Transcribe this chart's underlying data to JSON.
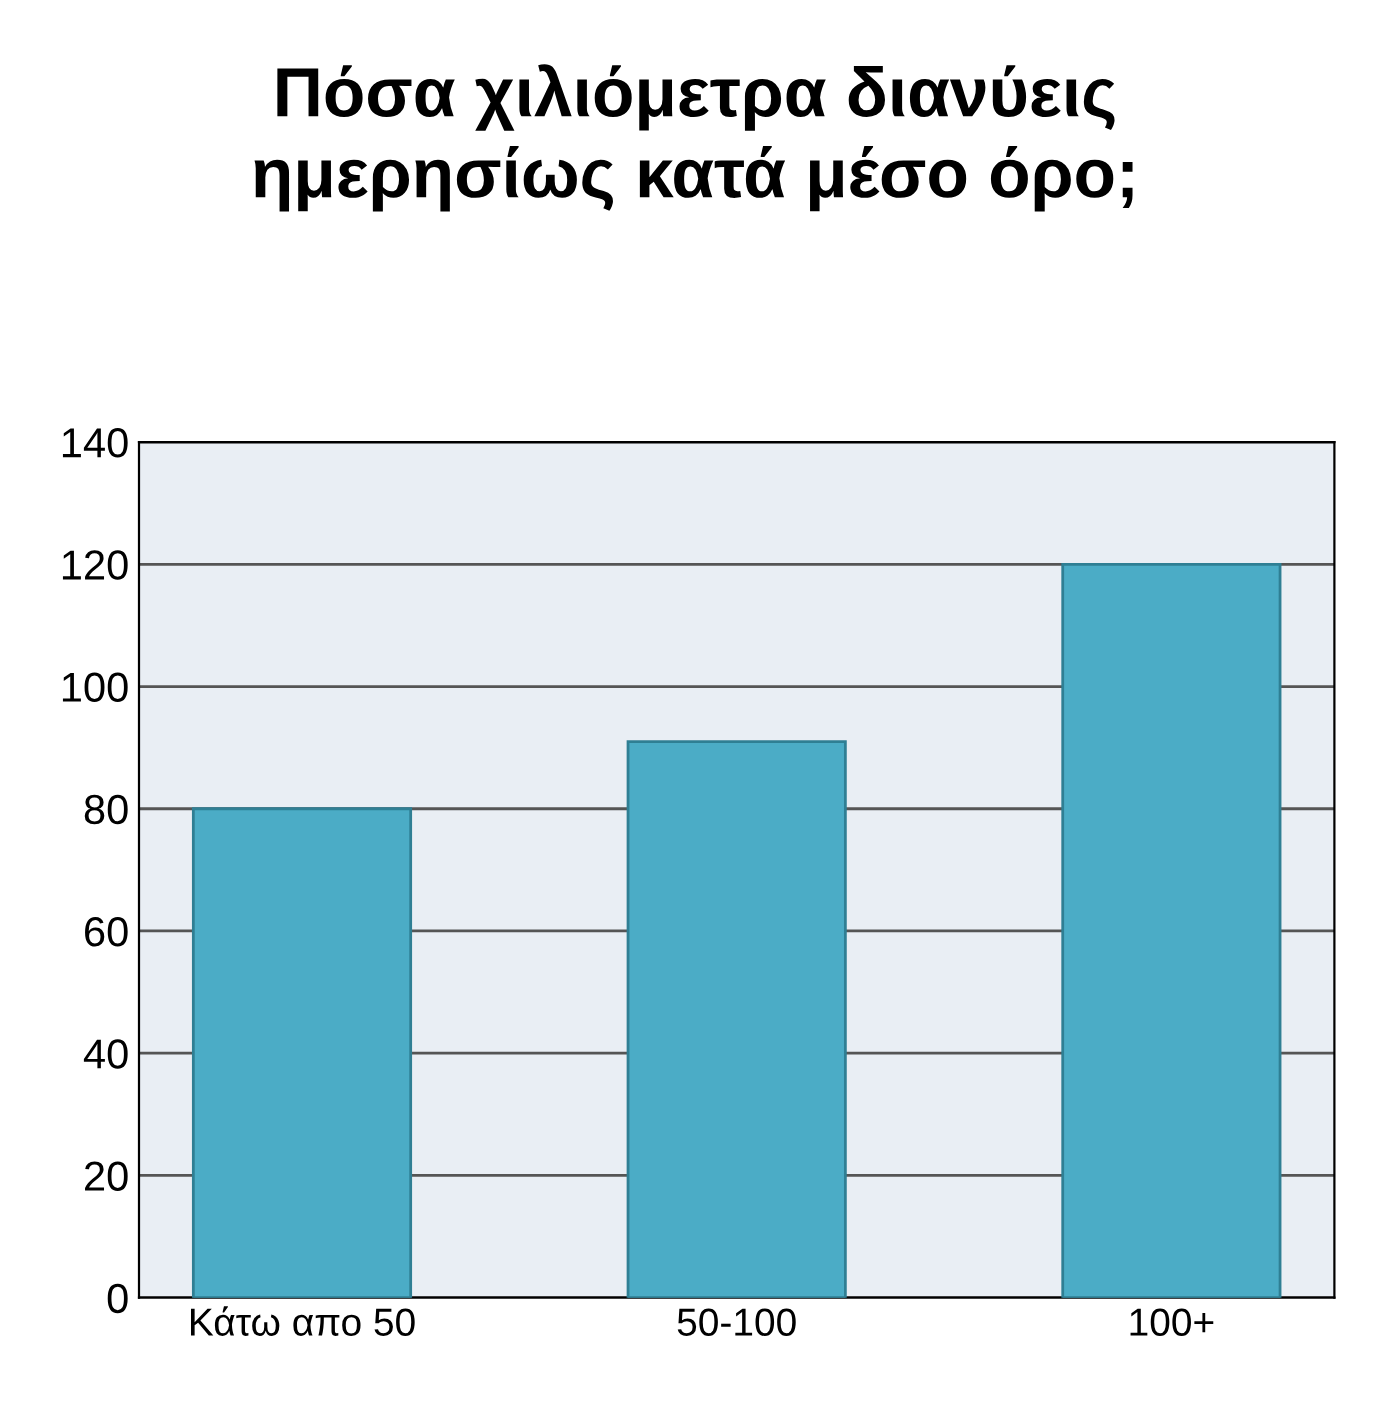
{
  "chart_data": {
    "type": "bar",
    "title": "Πόσα χιλιόμετρα διανύεις\nημερησίως κατά μέσο όρο;",
    "categories": [
      "Κάτω απο 50",
      "50-100",
      "100+"
    ],
    "values": [
      80,
      91,
      120
    ],
    "color": "#4bacc6",
    "ylim": [
      0,
      140
    ],
    "yticks": [
      0,
      20,
      40,
      60,
      80,
      100,
      120,
      140
    ],
    "grid": "y",
    "legend": false
  }
}
